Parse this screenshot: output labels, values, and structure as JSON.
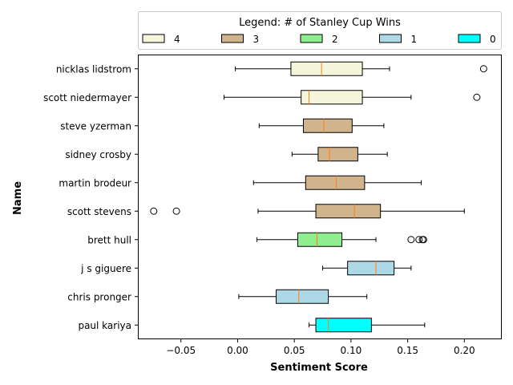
{
  "chart_data": {
    "type": "boxplot",
    "orientation": "horizontal",
    "xlabel": "Sentiment Score",
    "ylabel": "Name",
    "xlim": [
      -0.088,
      0.233
    ],
    "xticks": [
      -0.05,
      0.0,
      0.05,
      0.1,
      0.15,
      0.2
    ],
    "xtick_labels": [
      "−0.05",
      "0.00",
      "0.05",
      "0.10",
      "0.15",
      "0.20"
    ],
    "grid": false,
    "legend": {
      "title": "Legend: # of Stanley Cup Wins",
      "placement": "top, above plot",
      "entries": [
        {
          "label": "4",
          "color": "#f5f5dc"
        },
        {
          "label": "3",
          "color": "#d2b48c"
        },
        {
          "label": "2",
          "color": "#90ee90"
        },
        {
          "label": "1",
          "color": "#add8e6"
        },
        {
          "label": "0",
          "color": "#00ffff"
        }
      ]
    },
    "median_color": "#ff7f0e",
    "boxes": [
      {
        "name": "nicklas lidstrom",
        "cup_wins": "4",
        "whisker_low": -0.002,
        "q1": 0.047,
        "median": 0.074,
        "q3": 0.11,
        "whisker_high": 0.134,
        "outliers": [
          0.217
        ]
      },
      {
        "name": "scott niedermayer",
        "cup_wins": "4",
        "whisker_low": -0.012,
        "q1": 0.056,
        "median": 0.063,
        "q3": 0.11,
        "whisker_high": 0.153,
        "outliers": [
          0.211
        ]
      },
      {
        "name": "steve yzerman",
        "cup_wins": "3",
        "whisker_low": 0.019,
        "q1": 0.058,
        "median": 0.076,
        "q3": 0.101,
        "whisker_high": 0.129,
        "outliers": []
      },
      {
        "name": "sidney crosby",
        "cup_wins": "3",
        "whisker_low": 0.048,
        "q1": 0.071,
        "median": 0.081,
        "q3": 0.106,
        "whisker_high": 0.132,
        "outliers": []
      },
      {
        "name": "martin brodeur",
        "cup_wins": "3",
        "whisker_low": 0.014,
        "q1": 0.06,
        "median": 0.087,
        "q3": 0.112,
        "whisker_high": 0.162,
        "outliers": []
      },
      {
        "name": "scott stevens",
        "cup_wins": "3",
        "whisker_low": 0.018,
        "q1": 0.069,
        "median": 0.103,
        "q3": 0.126,
        "whisker_high": 0.2,
        "outliers": [
          -0.074,
          -0.054
        ]
      },
      {
        "name": "brett hull",
        "cup_wins": "2",
        "whisker_low": 0.017,
        "q1": 0.053,
        "median": 0.07,
        "q3": 0.092,
        "whisker_high": 0.122,
        "outliers": [
          0.153,
          0.16,
          0.163,
          0.164
        ]
      },
      {
        "name": "j s  giguere",
        "cup_wins": "1",
        "whisker_low": 0.075,
        "q1": 0.097,
        "median": 0.122,
        "q3": 0.138,
        "whisker_high": 0.153,
        "outliers": []
      },
      {
        "name": "chris pronger",
        "cup_wins": "1",
        "whisker_low": 0.001,
        "q1": 0.034,
        "median": 0.054,
        "q3": 0.08,
        "whisker_high": 0.114,
        "outliers": []
      },
      {
        "name": "paul kariya",
        "cup_wins": "0",
        "whisker_low": 0.063,
        "q1": 0.069,
        "median": 0.08,
        "q3": 0.118,
        "whisker_high": 0.165,
        "outliers": []
      }
    ]
  }
}
